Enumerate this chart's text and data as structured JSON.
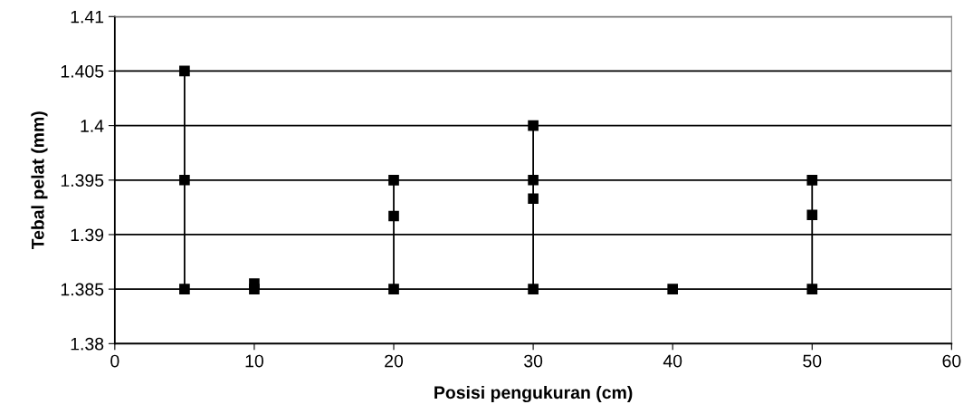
{
  "chart_data": {
    "type": "scatter",
    "xlabel": "Posisi pengukuran (cm)",
    "ylabel": "Tebal pelat (mm)",
    "xlim": [
      0,
      60
    ],
    "xticks": [
      0,
      10,
      20,
      30,
      40,
      50,
      60
    ],
    "ylim": [
      1.38,
      1.41
    ],
    "yticks": [
      1.38,
      1.385,
      1.39,
      1.395,
      1.4,
      1.405,
      1.41
    ],
    "grid": "y",
    "legend": false,
    "marker": "square",
    "series": [
      {
        "type": "line",
        "color": "#000000",
        "x": [
          5,
          5
        ],
        "values": [
          1.385,
          1.405
        ]
      },
      {
        "type": "line",
        "color": "#000000",
        "x": [
          20,
          20
        ],
        "values": [
          1.385,
          1.395
        ]
      },
      {
        "type": "line",
        "color": "#000000",
        "x": [
          30,
          30
        ],
        "values": [
          1.385,
          1.4
        ]
      },
      {
        "type": "line",
        "color": "#000000",
        "x": [
          50,
          50
        ],
        "values": [
          1.385,
          1.395
        ]
      },
      {
        "color": "#000000",
        "x": [
          5,
          10,
          10,
          20,
          30,
          30,
          40,
          50
        ],
        "values": [
          1.395,
          1.3855,
          1.385,
          1.3917,
          1.395,
          1.3933,
          1.385,
          1.3918
        ]
      }
    ]
  }
}
